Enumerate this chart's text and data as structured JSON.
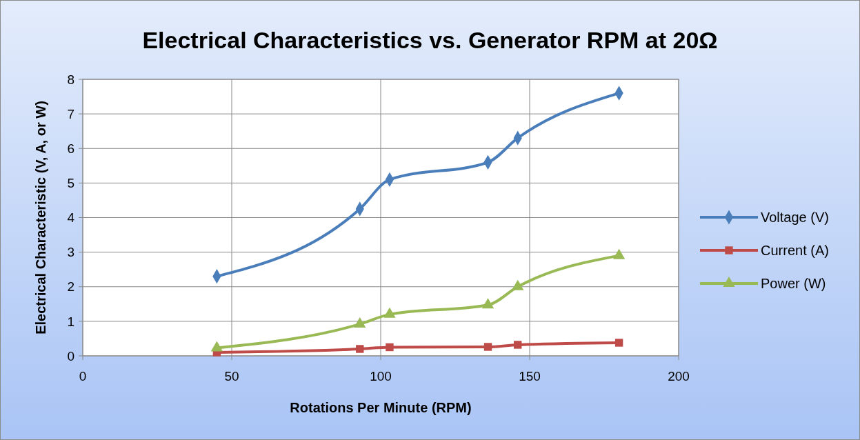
{
  "chart_data": {
    "type": "line",
    "title": "Electrical Characteristics vs. Generator RPM at 20Ω",
    "xlabel": "Rotations Per Minute (RPM)",
    "ylabel": "Electrical Characteristic (V, A, or W)",
    "x": [
      45,
      93,
      103,
      136,
      146,
      180
    ],
    "series": [
      {
        "name": "Voltage (V)",
        "color": "#4a7ebb",
        "marker": "diamond",
        "values": [
          2.3,
          4.25,
          5.1,
          5.6,
          6.3,
          7.6
        ]
      },
      {
        "name": "Current (A)",
        "color": "#be4b48",
        "marker": "square",
        "values": [
          0.1,
          0.2,
          0.25,
          0.26,
          0.32,
          0.38
        ]
      },
      {
        "name": "Power (W)",
        "color": "#98b954",
        "marker": "triangle",
        "values": [
          0.23,
          0.92,
          1.2,
          1.47,
          2.0,
          2.9
        ]
      }
    ],
    "xlim": [
      0,
      200
    ],
    "xticks": [
      0,
      50,
      100,
      150,
      200
    ],
    "ylim": [
      0,
      8
    ],
    "yticks": [
      0,
      1,
      2,
      3,
      4,
      5,
      6,
      7,
      8
    ],
    "grid": true,
    "legend": "right",
    "line_style": "solid"
  }
}
